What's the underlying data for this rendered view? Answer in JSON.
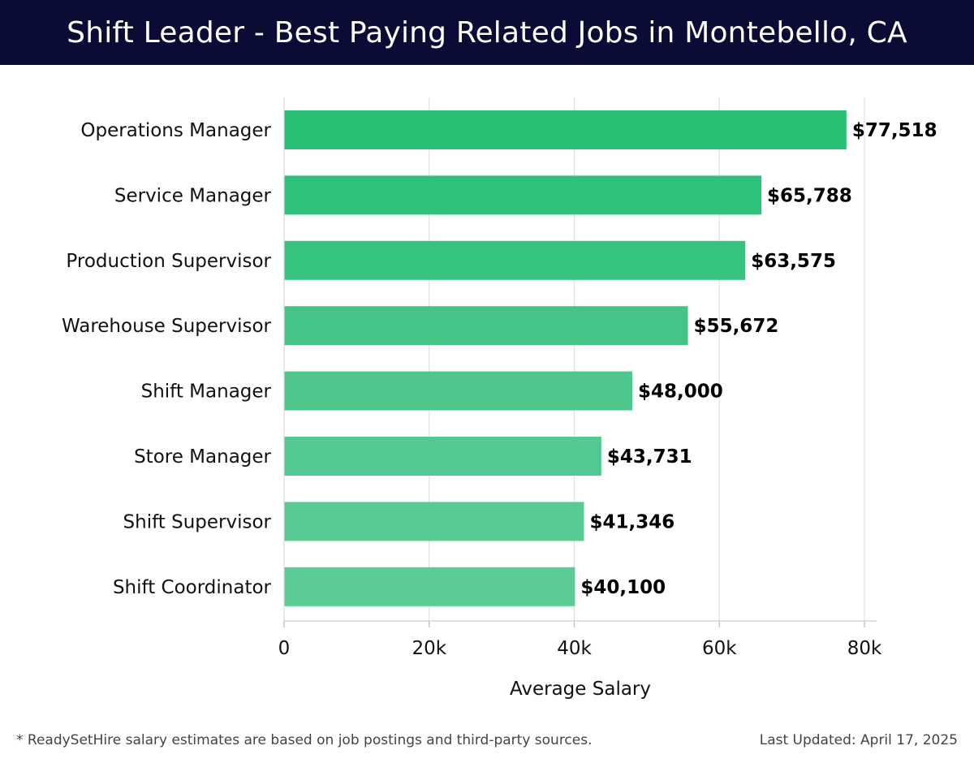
{
  "header": {
    "title": "Shift Leader - Best Paying Related Jobs in Montebello, CA"
  },
  "chart_data": {
    "type": "bar",
    "orientation": "horizontal",
    "title": "Shift Leader - Best Paying Related Jobs in Montebello, CA",
    "xlabel": "Average Salary",
    "ylabel": "",
    "categories": [
      "Operations Manager",
      "Service Manager",
      "Production Supervisor",
      "Warehouse Supervisor",
      "Shift Manager",
      "Store Manager",
      "Shift Supervisor",
      "Shift Coordinator"
    ],
    "values": [
      77518,
      65788,
      63575,
      55672,
      48000,
      43731,
      41346,
      40100
    ],
    "value_labels": [
      "$77,518",
      "$65,788",
      "$63,575",
      "$55,672",
      "$48,000",
      "$43,731",
      "$41,346",
      "$40,100"
    ],
    "xlim": [
      0,
      80000
    ],
    "x_ticks": [
      0,
      20000,
      40000,
      60000,
      80000
    ],
    "x_tick_labels": [
      "0",
      "20k",
      "40k",
      "60k",
      "80k"
    ],
    "grid": true,
    "bar_colors": [
      "#26bf74",
      "#2dc27a",
      "#36c47f",
      "#44c486",
      "#4dc78c",
      "#52c990",
      "#56cb93",
      "#5bcc96"
    ]
  },
  "footer": {
    "note": "* ReadySetHire salary estimates are based on job postings and third-party sources.",
    "updated": "Last Updated: April 17, 2025"
  }
}
